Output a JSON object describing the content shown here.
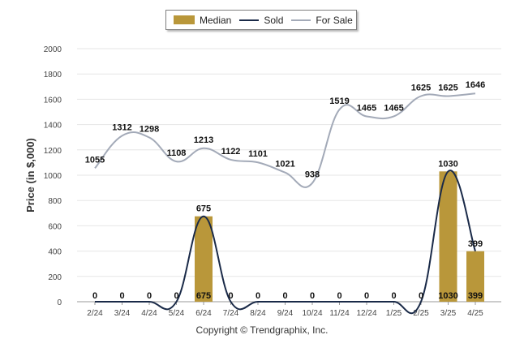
{
  "chart_data": {
    "type": "bar",
    "categories": [
      "2/24",
      "3/24",
      "4/24",
      "5/24",
      "6/24",
      "7/24",
      "8/24",
      "9/24",
      "10/24",
      "11/24",
      "12/24",
      "1/25",
      "2/25",
      "3/25",
      "4/25"
    ],
    "series": [
      {
        "name": "Median",
        "kind": "bar",
        "color": "#b9973a",
        "values": [
          0,
          0,
          0,
          0,
          675,
          0,
          0,
          0,
          0,
          0,
          0,
          0,
          0,
          1030,
          399
        ]
      },
      {
        "name": "Sold",
        "kind": "line",
        "color": "#1a2a48",
        "values": [
          0,
          0,
          0,
          0,
          675,
          0,
          0,
          0,
          0,
          0,
          0,
          0,
          0,
          1030,
          399
        ]
      },
      {
        "name": "For Sale",
        "kind": "line",
        "color": "#a3aab8",
        "values": [
          1055,
          1312,
          1298,
          1108,
          1213,
          1122,
          1101,
          1021,
          938,
          1519,
          1465,
          1465,
          1625,
          1625,
          1646
        ]
      }
    ],
    "ylabel": "Price (in $,000)",
    "xlabel": "",
    "ylim": [
      0,
      2000
    ],
    "yticks": [
      0,
      200,
      400,
      600,
      800,
      1000,
      1200,
      1400,
      1600,
      1800,
      2000
    ],
    "grid": true,
    "legend": "top"
  },
  "footer": {
    "copyright": "Copyright © Trendgraphix, Inc."
  }
}
